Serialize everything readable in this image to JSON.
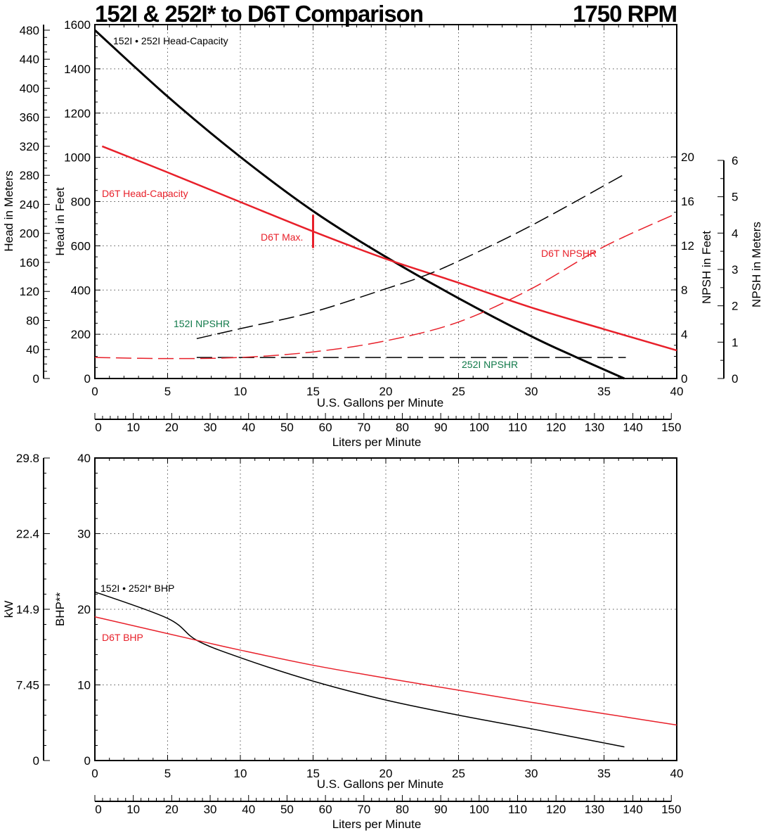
{
  "title": "152I & 252I* to D6T Comparison",
  "rpm": "1750 RPM",
  "colors": {
    "black": "#000000",
    "red": "#e8202a",
    "green": "#117a4a"
  },
  "chart_data": [
    {
      "type": "line",
      "grid": true,
      "xlabel": "U.S. Gallons per Minute",
      "xlim": [
        0,
        40
      ],
      "xticks": [
        0,
        5,
        10,
        15,
        20,
        25,
        30,
        35,
        40
      ],
      "x2label": "Liters per Minute",
      "x2ticks": [
        0,
        10,
        20,
        30,
        40,
        50,
        60,
        70,
        80,
        90,
        100,
        110,
        120,
        130,
        140,
        150
      ],
      "ylabel": "Head in Feet",
      "ylim": [
        0,
        1600
      ],
      "yticks": [
        0,
        200,
        400,
        600,
        800,
        1000,
        1200,
        1400,
        1600
      ],
      "y2label": "Head in Meters",
      "y2ticks": [
        0,
        40,
        80,
        120,
        160,
        200,
        240,
        280,
        320,
        360,
        400,
        440,
        480
      ],
      "y3label": "NPSH in Feet",
      "y3lim": [
        0,
        20
      ],
      "y3ticks": [
        0,
        4,
        8,
        12,
        16,
        20
      ],
      "y4label": "NPSH in Meters",
      "y4ticks": [
        0,
        1,
        2,
        3,
        4,
        5,
        6
      ],
      "annotations": {
        "hc_152": "152I • 252I Head-Capacity",
        "hc_d6t": "D6T Head-Capacity",
        "d6t_max": "D6T Max.",
        "npshr_d6t": "D6T NPSHR",
        "npshr_152": "152I NPSHR",
        "npshr_252": "252I NPSHR"
      },
      "series": [
        {
          "name": "152I • 252I Head-Capacity",
          "axis": "feet",
          "style": "solid",
          "color": "#000000",
          "x": [
            0,
            5,
            10,
            15,
            20,
            25,
            30,
            33,
            36.4
          ],
          "y": [
            1575,
            1275,
            1002,
            757,
            550,
            363,
            191,
            99,
            0
          ]
        },
        {
          "name": "D6T Head-Capacity",
          "axis": "feet",
          "style": "solid",
          "color": "#e8202a",
          "x": [
            0.5,
            5,
            10,
            15,
            20,
            25,
            30,
            35,
            40
          ],
          "y": [
            1050,
            932,
            798,
            665,
            541,
            433,
            321,
            223,
            127
          ]
        },
        {
          "name": "152I NPSHR",
          "axis": "npsh",
          "style": "dashed",
          "color": "#000000",
          "x": [
            7,
            10,
            15,
            20,
            22.5,
            25,
            30,
            36.5
          ],
          "y": [
            3.6,
            4.5,
            6.0,
            8.1,
            9.2,
            10.6,
            13.8,
            18.5
          ]
        },
        {
          "name": "252I NPSHR",
          "axis": "npsh",
          "style": "dashed",
          "color": "#000000",
          "x": [
            7,
            36.5
          ],
          "y": [
            1.9,
            1.9
          ]
        },
        {
          "name": "D6T NPSHR",
          "axis": "npsh",
          "style": "dashed",
          "color": "#e8202a",
          "x": [
            0,
            5,
            10,
            15,
            20,
            25,
            30,
            35,
            40
          ],
          "y": [
            1.9,
            1.8,
            1.9,
            2.4,
            3.4,
            5.1,
            8.1,
            11.9,
            14.9
          ]
        }
      ],
      "d6t_max_marker": {
        "x": 15,
        "y_range": [
          590,
          740
        ]
      }
    },
    {
      "type": "line",
      "grid": true,
      "xlabel": "U.S. Gallons per Minute",
      "xlim": [
        0,
        40
      ],
      "xticks": [
        0,
        5,
        10,
        15,
        20,
        25,
        30,
        35,
        40
      ],
      "x2label": "Liters per Minute",
      "x2ticks": [
        0,
        10,
        20,
        30,
        40,
        50,
        60,
        70,
        80,
        90,
        100,
        110,
        120,
        130,
        140,
        150
      ],
      "ylabel": "BHP**",
      "ylim": [
        0,
        40
      ],
      "yticks": [
        0,
        10,
        20,
        30,
        40
      ],
      "y2label": "kW",
      "y2ticks": [
        "0",
        "7.45",
        "14.9",
        "22.4",
        "29.8"
      ],
      "annotations": {
        "bhp_152": "152I • 252I* BHP",
        "bhp_d6t": "D6T BHP"
      },
      "series": [
        {
          "name": "152I • 252I* BHP",
          "color": "#000000",
          "x": [
            0,
            5,
            7,
            10,
            15,
            20,
            25,
            30,
            36.4
          ],
          "y": [
            22.3,
            18.8,
            15.9,
            13.6,
            10.5,
            8.0,
            6.0,
            4.2,
            1.8
          ]
        },
        {
          "name": "D6T BHP",
          "color": "#e8202a",
          "x": [
            0,
            7,
            10,
            15,
            20,
            25,
            30,
            35,
            40
          ],
          "y": [
            19.0,
            15.9,
            14.6,
            12.6,
            10.9,
            9.3,
            7.7,
            6.2,
            4.7
          ]
        }
      ]
    }
  ]
}
